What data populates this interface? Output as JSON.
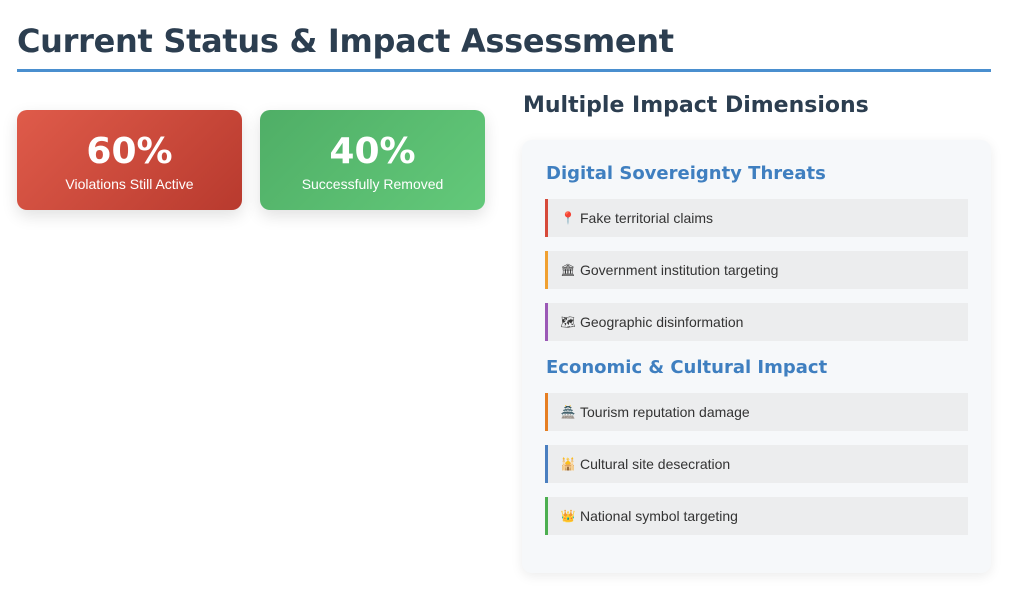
{
  "page": {
    "title": "Current Status & Impact Assessment"
  },
  "stats": [
    {
      "value": "60%",
      "label": "Violations Still Active",
      "color": "#c94536"
    },
    {
      "value": "40%",
      "label": "Successfully Removed",
      "color": "#56bb6f"
    }
  ],
  "impact": {
    "heading": "Multiple Impact Dimensions",
    "groups": [
      {
        "title": "Digital Sovereignty Threats",
        "items": [
          {
            "icon": "📍",
            "icon_name": "pin-icon",
            "label": "Fake territorial claims",
            "accent": "#d64a3a"
          },
          {
            "icon": "🏛",
            "icon_name": "government-building-icon",
            "label": "Government institution targeting",
            "accent": "#f0a030"
          },
          {
            "icon": "🗺",
            "icon_name": "map-icon",
            "label": "Geographic disinformation",
            "accent": "#9b59b6"
          }
        ]
      },
      {
        "title": "Economic & Cultural Impact",
        "items": [
          {
            "icon": "🏯",
            "icon_name": "temple-icon",
            "label": "Tourism reputation damage",
            "accent": "#e67e22"
          },
          {
            "icon": "🕌",
            "icon_name": "cultural-site-icon",
            "label": "Cultural site desecration",
            "accent": "#4a7fc0"
          },
          {
            "icon": "👑",
            "icon_name": "crown-icon",
            "label": "National symbol targeting",
            "accent": "#4caf50"
          }
        ]
      }
    ]
  }
}
